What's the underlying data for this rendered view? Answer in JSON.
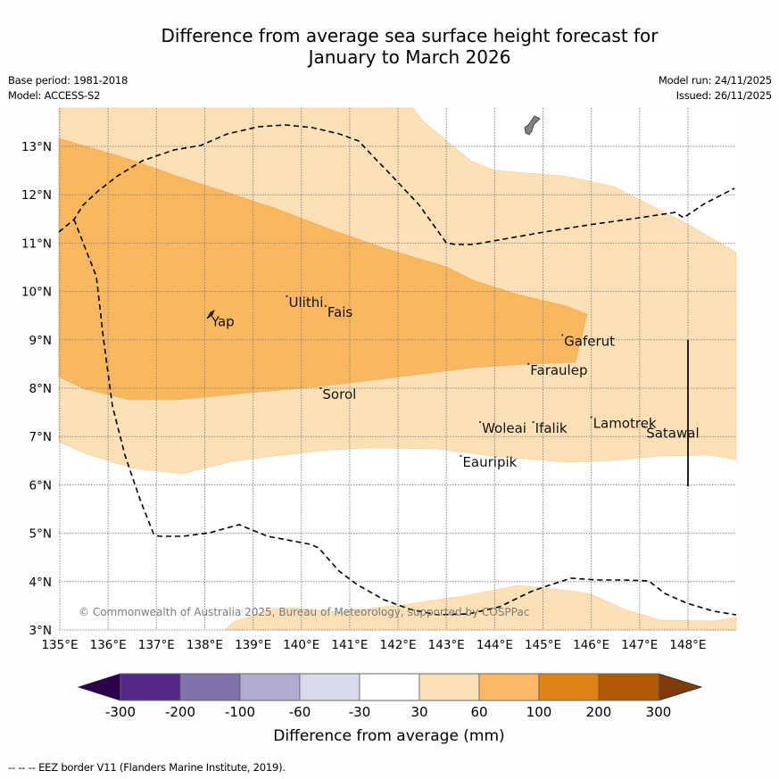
{
  "title_line1": "Difference from average sea surface height forecast for",
  "title_line2": "January to March 2026",
  "meta": {
    "base_period": "Base period: 1981-2018",
    "model": "Model: ACCESS-S2",
    "model_run": "Model run: 24/11/2025",
    "issued": "Issued: 26/11/2025"
  },
  "map": {
    "lon_range": [
      135,
      149
    ],
    "lat_range": [
      3,
      13.8
    ],
    "lon_ticks": [
      "135°E",
      "136°E",
      "137°E",
      "138°E",
      "139°E",
      "140°E",
      "141°E",
      "142°E",
      "143°E",
      "144°E",
      "145°E",
      "146°E",
      "147°E",
      "148°E"
    ],
    "lat_ticks": [
      "3°N",
      "4°N",
      "5°N",
      "6°N",
      "7°N",
      "8°N",
      "9°N",
      "10°N",
      "11°N",
      "12°N",
      "13°N"
    ],
    "copyright": "© Commonwealth of Australia 2025, Bureau of Meteorology, supported by COSPPac",
    "places": [
      {
        "name": "Yap",
        "lon": 138.1,
        "lat": 9.5
      },
      {
        "name": "Ulithi",
        "lon": 139.7,
        "lat": 9.9
      },
      {
        "name": "Fais",
        "lon": 140.5,
        "lat": 9.7
      },
      {
        "name": "Gaferut",
        "lon": 145.4,
        "lat": 9.1
      },
      {
        "name": "Faraulep",
        "lon": 144.7,
        "lat": 8.5
      },
      {
        "name": "Sorol",
        "lon": 140.4,
        "lat": 8.0
      },
      {
        "name": "Lamotrek",
        "lon": 146.0,
        "lat": 7.4
      },
      {
        "name": "Woleai",
        "lon": 143.7,
        "lat": 7.3
      },
      {
        "name": "Ifalik",
        "lon": 144.8,
        "lat": 7.3
      },
      {
        "name": "Satawal",
        "lon": 147.1,
        "lat": 7.2
      },
      {
        "name": "Eauripik",
        "lon": 143.3,
        "lat": 6.6
      }
    ],
    "colors": {
      "band_30_60": "#fde0b5",
      "band_60_100": "#f9b75e",
      "land": "#808080",
      "eez": "#000000"
    }
  },
  "colorbar": {
    "label": "Difference from average (mm)",
    "ticks": [
      "-300",
      "-200",
      "-100",
      "-60",
      "-30",
      "30",
      "60",
      "100",
      "200",
      "300"
    ],
    "bins": [
      {
        "range": "< -300",
        "color": "#2d004b"
      },
      {
        "range": "-300 to -200",
        "color": "#542788"
      },
      {
        "range": "-200 to -100",
        "color": "#8073ac"
      },
      {
        "range": "-100 to -60",
        "color": "#b2abd2"
      },
      {
        "range": "-60 to -30",
        "color": "#d8daeb"
      },
      {
        "range": "-30 to 30",
        "color": "#ffffff"
      },
      {
        "range": "30 to 60",
        "color": "#fee0b6"
      },
      {
        "range": "60 to 100",
        "color": "#fdb863"
      },
      {
        "range": "100 to 200",
        "color": "#e08214"
      },
      {
        "range": "200 to 300",
        "color": "#b35806"
      },
      {
        "range": "> 300",
        "color": "#7f3b08"
      }
    ]
  },
  "footer": "--  --  -- EEZ border V11 (Flanders Marine Institute, 2019)."
}
